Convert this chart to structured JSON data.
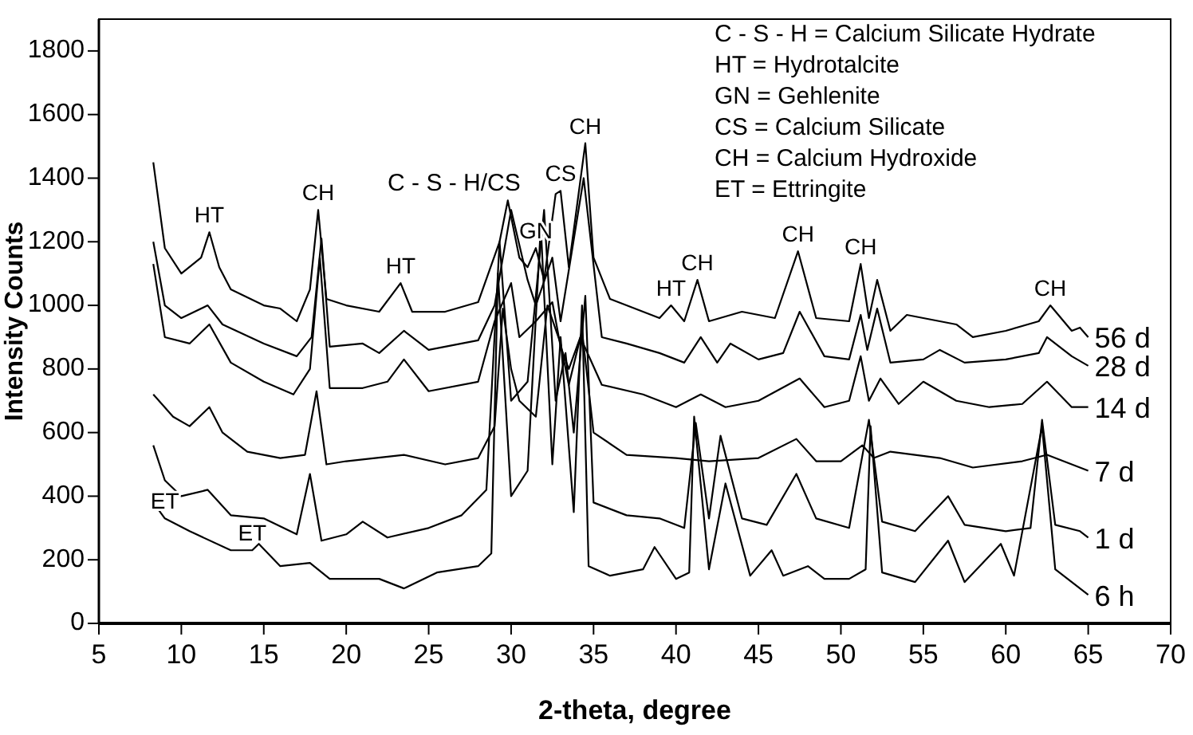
{
  "chart_data": {
    "type": "line",
    "xlabel": "2-theta, degree",
    "ylabel": "Intensity Counts",
    "xlim": [
      5,
      70
    ],
    "ylim": [
      0,
      1900
    ],
    "xticks": [
      5,
      10,
      15,
      20,
      25,
      30,
      35,
      40,
      45,
      50,
      55,
      60,
      65,
      70
    ],
    "yticks": [
      0,
      200,
      400,
      600,
      800,
      1000,
      1200,
      1400,
      1600,
      1800
    ],
    "grid": false,
    "marker": "none",
    "line_style": "solid",
    "series": [
      {
        "name": "56 d",
        "color": "#000000",
        "x": [
          8.3,
          9,
          10,
          11.2,
          11.7,
          12.3,
          13,
          15,
          16,
          17,
          17.8,
          18.3,
          18.8,
          20,
          22,
          23.3,
          24,
          26,
          28,
          29.3,
          29.8,
          30.5,
          31,
          31.5,
          32,
          32.7,
          33,
          33.5,
          34.5,
          35,
          36,
          39,
          39.7,
          40.5,
          41.3,
          42,
          44,
          46,
          47.4,
          48.5,
          50.5,
          51.2,
          51.7,
          52.2,
          53,
          54,
          55,
          57,
          58,
          60,
          62,
          62.7,
          64,
          64.5,
          65
        ],
        "values": [
          1450,
          1180,
          1100,
          1150,
          1230,
          1120,
          1050,
          1000,
          990,
          950,
          1050,
          1300,
          1020,
          1000,
          980,
          1070,
          980,
          980,
          1010,
          1200,
          1330,
          1150,
          1120,
          1180,
          1080,
          1350,
          1360,
          1120,
          1510,
          1150,
          1020,
          960,
          1000,
          950,
          1080,
          950,
          980,
          960,
          1170,
          960,
          950,
          1130,
          960,
          1080,
          920,
          970,
          960,
          940,
          900,
          920,
          950,
          1000,
          920,
          930,
          900
        ]
      },
      {
        "name": "28 d",
        "color": "#000000",
        "x": [
          8.3,
          9,
          10,
          11.6,
          12.5,
          15,
          17,
          17.9,
          18.5,
          19,
          21,
          22,
          23.5,
          25,
          28,
          29,
          30,
          31,
          31.5,
          32.5,
          33,
          34.4,
          35.5,
          37,
          39,
          40.5,
          41.5,
          42.5,
          43.3,
          45,
          46.5,
          47.5,
          49,
          50.5,
          51.2,
          51.6,
          52.2,
          53,
          55,
          56,
          57.5,
          60,
          62,
          62.5,
          64,
          65
        ],
        "values": [
          1200,
          1000,
          960,
          1000,
          940,
          880,
          840,
          900,
          1210,
          870,
          880,
          850,
          920,
          860,
          890,
          1000,
          1300,
          1080,
          1000,
          1150,
          950,
          1400,
          900,
          880,
          850,
          820,
          900,
          820,
          880,
          830,
          850,
          980,
          840,
          830,
          970,
          860,
          990,
          820,
          830,
          860,
          820,
          830,
          850,
          900,
          840,
          810
        ]
      },
      {
        "name": "14 d",
        "color": "#000000",
        "x": [
          8.3,
          9,
          10.5,
          11.7,
          13,
          15,
          16.8,
          17.8,
          18.4,
          19,
          21,
          22.5,
          23.5,
          25,
          28,
          29,
          30,
          30.5,
          31.5,
          32.5,
          33,
          33.5,
          34.2,
          35.5,
          38,
          40,
          41.5,
          43,
          45,
          47.5,
          49,
          50.5,
          51.2,
          51.7,
          52.4,
          53.5,
          55,
          57,
          59,
          61,
          62.5,
          64,
          65
        ],
        "values": [
          1130,
          900,
          880,
          940,
          820,
          760,
          720,
          800,
          1150,
          740,
          740,
          760,
          830,
          730,
          760,
          950,
          1070,
          900,
          950,
          1010,
          870,
          800,
          900,
          750,
          720,
          680,
          720,
          680,
          700,
          770,
          680,
          700,
          840,
          700,
          770,
          690,
          760,
          700,
          680,
          690,
          760,
          680,
          680
        ]
      },
      {
        "name": "7 d",
        "color": "#000000",
        "x": [
          8.3,
          9.5,
          10.5,
          11.7,
          12.5,
          14,
          16,
          17.5,
          18.2,
          18.8,
          20,
          23.5,
          26,
          28,
          29,
          29.5,
          30,
          30.5,
          31.5,
          32.2,
          33,
          33.5,
          34.3,
          35,
          37,
          40,
          42,
          45,
          47.3,
          48.5,
          50,
          51.3,
          52,
          53,
          56,
          58,
          61,
          62.5,
          64,
          65
        ],
        "values": [
          720,
          650,
          620,
          680,
          600,
          540,
          520,
          530,
          730,
          500,
          510,
          530,
          500,
          520,
          620,
          990,
          800,
          700,
          650,
          1000,
          880,
          750,
          920,
          600,
          530,
          520,
          510,
          520,
          580,
          510,
          510,
          560,
          520,
          540,
          520,
          490,
          510,
          530,
          500,
          480
        ]
      },
      {
        "name": "1 d",
        "color": "#000000",
        "x": [
          8.3,
          9,
          10,
          11.6,
          13,
          15,
          17,
          17.8,
          18.5,
          20,
          21,
          22.5,
          25,
          27,
          28.5,
          29.3,
          30,
          31,
          32,
          32.7,
          33.3,
          33.8,
          34.5,
          35,
          37,
          39,
          40.5,
          41.2,
          42,
          42.7,
          44,
          45.5,
          47.3,
          48.5,
          50.5,
          51.7,
          52.5,
          54.5,
          56.5,
          57.5,
          60,
          61.5,
          62.2,
          63,
          64.5,
          65
        ],
        "values": [
          560,
          450,
          400,
          420,
          340,
          330,
          280,
          470,
          260,
          280,
          320,
          270,
          300,
          340,
          420,
          1200,
          700,
          760,
          1300,
          700,
          850,
          600,
          1030,
          380,
          340,
          330,
          300,
          630,
          330,
          590,
          330,
          310,
          470,
          330,
          300,
          640,
          320,
          290,
          400,
          310,
          290,
          300,
          640,
          310,
          290,
          270
        ]
      },
      {
        "name": "6 h",
        "color": "#000000",
        "x": [
          8.3,
          9,
          10.5,
          13,
          14.3,
          14.7,
          16,
          17.8,
          19,
          22,
          23.5,
          25.5,
          28,
          28.8,
          29.2,
          30,
          31,
          31.8,
          32.5,
          33,
          33.8,
          34.3,
          34.7,
          36,
          38,
          38.7,
          40,
          40.8,
          41.1,
          42,
          43,
          44.5,
          45.8,
          46.5,
          48,
          49,
          50.5,
          51.5,
          51.8,
          52.5,
          54.5,
          56.5,
          57.5,
          59.7,
          60.5,
          62.2,
          63,
          65
        ],
        "values": [
          380,
          330,
          290,
          230,
          230,
          250,
          180,
          190,
          140,
          140,
          110,
          160,
          180,
          220,
          1100,
          400,
          480,
          1250,
          500,
          900,
          350,
          1000,
          180,
          150,
          170,
          240,
          140,
          160,
          650,
          170,
          440,
          150,
          230,
          150,
          180,
          140,
          140,
          170,
          620,
          160,
          130,
          260,
          130,
          250,
          150,
          620,
          170,
          90
        ]
      }
    ],
    "annotations": [
      {
        "text": "HT",
        "x": 11.7,
        "y": 1230
      },
      {
        "text": "CH",
        "x": 18.3,
        "y": 1300
      },
      {
        "text": "HT",
        "x": 23.3,
        "y": 1070
      },
      {
        "text": "C - S - H/CS",
        "x": 29.8,
        "y": 1330
      },
      {
        "text": "GN",
        "x": 31.5,
        "y": 1180
      },
      {
        "text": "CS",
        "x": 33,
        "y": 1360
      },
      {
        "text": "CH",
        "x": 34.5,
        "y": 1510
      },
      {
        "text": "HT",
        "x": 39.7,
        "y": 1000
      },
      {
        "text": "CH",
        "x": 41.3,
        "y": 1080
      },
      {
        "text": "CH",
        "x": 47.4,
        "y": 1170
      },
      {
        "text": "CH",
        "x": 51.2,
        "y": 1130
      },
      {
        "text": "CH",
        "x": 62.7,
        "y": 1000
      },
      {
        "text": "ET",
        "x": 9,
        "y": 330
      },
      {
        "text": "ET",
        "x": 14.3,
        "y": 230
      },
      "C - S - H = Calcium Silicate Hydrate",
      "HT = Hydrotalcite",
      "GN = Gehlenite",
      "CS = Calcium Silicate",
      "CH = Calcium Hydroxide",
      "ET = Ettringite"
    ]
  }
}
